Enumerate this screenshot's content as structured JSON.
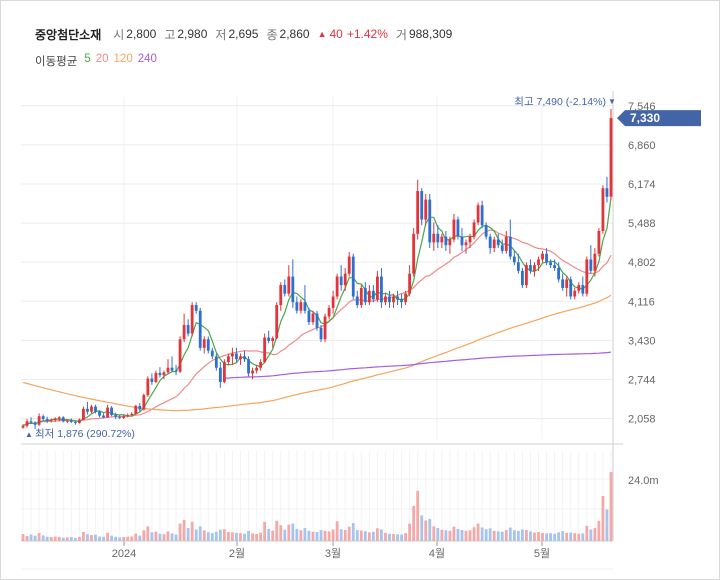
{
  "header": {
    "stock_name": "중앙첨단소재",
    "open_label": "시",
    "open": "2,800",
    "high_label": "고",
    "high": "2,980",
    "low_label": "저",
    "low": "2,695",
    "close_label": "종",
    "close": "2,860",
    "change_arrow": "▲",
    "change": "40",
    "change_pct": "+1.42%",
    "volume_label": "거",
    "volume": "988,309"
  },
  "ma_legend": {
    "label": "이동평균",
    "items": [
      {
        "period": "5",
        "color": "#48a84a"
      },
      {
        "period": "20",
        "color": "#f08a8a"
      },
      {
        "period": "120",
        "color": "#f5a55c"
      },
      {
        "period": "240",
        "color": "#a55ee0"
      }
    ]
  },
  "annotations": {
    "max_text": "최고 7,490 (-2.14%)",
    "max_marker": "▼",
    "min_marker": "▲",
    "min_text": "최저 1,876 (290.72%)",
    "current_price": "7,330"
  },
  "colors": {
    "up": "#e0353a",
    "down": "#2f6fd0",
    "vol_up": "#f4a9a9",
    "vol_down": "#a7c4ef",
    "badge": "#4464a8"
  },
  "chart_data": {
    "type": "candlestick",
    "y_ticks": [
      "7,546",
      "6,860",
      "6,174",
      "5,488",
      "4,802",
      "4,116",
      "3,430",
      "2,744",
      "2,058"
    ],
    "ylim": [
      1700,
      7700
    ],
    "volume_tick": "24.0m",
    "volume_ylim": [
      0,
      32
    ],
    "x_labels": [
      "2024",
      "2월",
      "3월",
      "4월",
      "5월"
    ],
    "grid": true,
    "price": [
      [
        1900,
        1960,
        1880,
        1930
      ],
      [
        1930,
        2050,
        1900,
        2010
      ],
      [
        2010,
        2080,
        1960,
        1990
      ],
      [
        1990,
        2010,
        1876,
        1950
      ],
      [
        1950,
        2150,
        1930,
        2100
      ],
      [
        2100,
        2130,
        2020,
        2050
      ],
      [
        2050,
        2090,
        1980,
        2020
      ],
      [
        2020,
        2060,
        1990,
        2040
      ],
      [
        2040,
        2080,
        2000,
        2050
      ],
      [
        2050,
        2100,
        2010,
        2080
      ],
      [
        2080,
        2100,
        1990,
        2010
      ],
      [
        2010,
        2040,
        1980,
        2020
      ],
      [
        2020,
        2060,
        1980,
        2000
      ],
      [
        2000,
        2020,
        1950,
        1980
      ],
      [
        1980,
        2060,
        1970,
        2040
      ],
      [
        2040,
        2270,
        2030,
        2230
      ],
      [
        2230,
        2350,
        2130,
        2180
      ],
      [
        2180,
        2300,
        2150,
        2270
      ],
      [
        2270,
        2300,
        2150,
        2180
      ],
      [
        2180,
        2200,
        2080,
        2110
      ],
      [
        2110,
        2150,
        2060,
        2080
      ],
      [
        2080,
        2300,
        2070,
        2250
      ],
      [
        2250,
        2280,
        2100,
        2120
      ],
      [
        2120,
        2160,
        2050,
        2090
      ],
      [
        2090,
        2120,
        2050,
        2070
      ],
      [
        2070,
        2120,
        2050,
        2100
      ],
      [
        2100,
        2150,
        2080,
        2120
      ],
      [
        2120,
        2170,
        2090,
        2140
      ],
      [
        2140,
        2300,
        2130,
        2280
      ],
      [
        2280,
        2330,
        2180,
        2220
      ],
      [
        2220,
        2500,
        2200,
        2470
      ],
      [
        2470,
        2800,
        2440,
        2760
      ],
      [
        2760,
        2850,
        2650,
        2700
      ],
      [
        2700,
        2900,
        2680,
        2860
      ],
      [
        2860,
        2960,
        2780,
        2820
      ],
      [
        2820,
        2900,
        2750,
        2870
      ],
      [
        2870,
        3100,
        2850,
        2950
      ],
      [
        2950,
        3150,
        2880,
        2900
      ],
      [
        2900,
        3000,
        2820,
        2880
      ],
      [
        2880,
        3500,
        2860,
        3450
      ],
      [
        3450,
        3900,
        3400,
        3700
      ],
      [
        3700,
        3800,
        3500,
        3550
      ],
      [
        3550,
        4100,
        3500,
        4050
      ],
      [
        4050,
        4100,
        3900,
        3950
      ],
      [
        3950,
        4000,
        3250,
        3300
      ],
      [
        3300,
        3500,
        3200,
        3450
      ],
      [
        3450,
        3500,
        3200,
        3250
      ],
      [
        3250,
        3300,
        3100,
        3150
      ],
      [
        3150,
        3200,
        2900,
        2950
      ],
      [
        2950,
        3050,
        2600,
        2700
      ],
      [
        2700,
        3100,
        2680,
        3050
      ],
      [
        3050,
        3200,
        3000,
        3150
      ],
      [
        3150,
        3300,
        3000,
        3200
      ],
      [
        3200,
        3300,
        3050,
        3100
      ],
      [
        3100,
        3200,
        3000,
        3150
      ],
      [
        3150,
        3250,
        3050,
        3100
      ],
      [
        3100,
        3150,
        2800,
        2850
      ],
      [
        2850,
        2950,
        2750,
        2900
      ],
      [
        2900,
        3000,
        2850,
        2950
      ],
      [
        2950,
        3100,
        2900,
        3050
      ],
      [
        3050,
        3550,
        3030,
        3480
      ],
      [
        3480,
        3600,
        3380,
        3420
      ],
      [
        3420,
        3500,
        3300,
        3470
      ],
      [
        3470,
        4100,
        3450,
        4050
      ],
      [
        4050,
        4450,
        3950,
        4400
      ],
      [
        4400,
        4500,
        4200,
        4250
      ],
      [
        4250,
        4750,
        4200,
        4550
      ],
      [
        4550,
        4850,
        4000,
        4100
      ],
      [
        4100,
        4200,
        3900,
        3950
      ],
      [
        3950,
        4150,
        3900,
        4100
      ],
      [
        4100,
        4400,
        3900,
        3950
      ],
      [
        3950,
        4000,
        3700,
        3750
      ],
      [
        3750,
        3950,
        3700,
        3900
      ],
      [
        3900,
        3950,
        3600,
        3650
      ],
      [
        3650,
        3700,
        3400,
        3450
      ],
      [
        3450,
        3900,
        3400,
        3850
      ],
      [
        3850,
        4050,
        3800,
        4000
      ],
      [
        4000,
        4300,
        3900,
        4200
      ],
      [
        4200,
        4600,
        4150,
        4550
      ],
      [
        4550,
        4750,
        4300,
        4400
      ],
      [
        4400,
        4700,
        4300,
        4600
      ],
      [
        4600,
        4980,
        4550,
        4900
      ],
      [
        4900,
        4950,
        4150,
        4200
      ],
      [
        4200,
        4300,
        4000,
        4050
      ],
      [
        4050,
        4400,
        4000,
        4350
      ],
      [
        4350,
        4450,
        4050,
        4100
      ],
      [
        4100,
        4400,
        4050,
        4300
      ],
      [
        4300,
        4400,
        4100,
        4150
      ],
      [
        4150,
        4650,
        4100,
        4550
      ],
      [
        4550,
        4700,
        4000,
        4100
      ],
      [
        4100,
        4250,
        4050,
        4200
      ],
      [
        4200,
        4300,
        4000,
        4100
      ],
      [
        4100,
        4250,
        4000,
        4200
      ],
      [
        4200,
        4300,
        4050,
        4150
      ],
      [
        4150,
        4250,
        4000,
        4100
      ],
      [
        4100,
        4300,
        4050,
        4250
      ],
      [
        4250,
        4750,
        4200,
        4600
      ],
      [
        4600,
        5400,
        4550,
        5300
      ],
      [
        5300,
        6250,
        5200,
        6050
      ],
      [
        6050,
        6100,
        5450,
        5550
      ],
      [
        5550,
        6000,
        5450,
        5900
      ],
      [
        5900,
        6000,
        5050,
        5150
      ],
      [
        5150,
        5500,
        5000,
        5300
      ],
      [
        5300,
        5450,
        5050,
        5150
      ],
      [
        5150,
        5300,
        5050,
        5250
      ],
      [
        5250,
        5350,
        5000,
        5100
      ],
      [
        5100,
        5250,
        4950,
        5200
      ],
      [
        5200,
        5650,
        5150,
        5550
      ],
      [
        5550,
        5600,
        5200,
        5250
      ],
      [
        5250,
        5400,
        5000,
        5100
      ],
      [
        5100,
        5200,
        4950,
        5150
      ],
      [
        5150,
        5300,
        5050,
        5250
      ],
      [
        5250,
        5550,
        5200,
        5500
      ],
      [
        5500,
        5850,
        5450,
        5800
      ],
      [
        5800,
        5880,
        5400,
        5450
      ],
      [
        5450,
        5500,
        5200,
        5250
      ],
      [
        5250,
        5300,
        4950,
        5050
      ],
      [
        5050,
        5250,
        4980,
        5200
      ],
      [
        5200,
        5300,
        5050,
        5100
      ],
      [
        5100,
        5200,
        4950,
        5000
      ],
      [
        5000,
        5350,
        4950,
        5250
      ],
      [
        5250,
        5550,
        4850,
        4900
      ],
      [
        4900,
        5000,
        4750,
        4800
      ],
      [
        4800,
        4950,
        4600,
        4650
      ],
      [
        4650,
        4700,
        4350,
        4400
      ],
      [
        4400,
        4800,
        4350,
        4750
      ],
      [
        4750,
        4850,
        4600,
        4650
      ],
      [
        4650,
        4800,
        4550,
        4750
      ],
      [
        4750,
        4900,
        4650,
        4850
      ],
      [
        4850,
        5000,
        4800,
        4950
      ],
      [
        4950,
        5050,
        4750,
        4800
      ],
      [
        4800,
        4850,
        4700,
        4750
      ],
      [
        4750,
        4850,
        4650,
        4700
      ],
      [
        4700,
        4800,
        4450,
        4500
      ],
      [
        4500,
        4600,
        4300,
        4350
      ],
      [
        4350,
        4550,
        4200,
        4500
      ],
      [
        4500,
        4550,
        4150,
        4200
      ],
      [
        4200,
        4350,
        4150,
        4300
      ],
      [
        4300,
        4450,
        4250,
        4400
      ],
      [
        4400,
        4550,
        4200,
        4250
      ],
      [
        4250,
        4900,
        4200,
        4850
      ],
      [
        4850,
        5100,
        4600,
        4650
      ],
      [
        4650,
        5050,
        4550,
        4950
      ],
      [
        4950,
        5400,
        4900,
        5350
      ],
      [
        5350,
        6150,
        5300,
        6100
      ],
      [
        6100,
        6300,
        5850,
        5950
      ],
      [
        5950,
        7490,
        5900,
        7330
      ]
    ],
    "volume": [
      2.5,
      1.8,
      2.3,
      1.9,
      2.8,
      2.0,
      1.5,
      1.4,
      1.6,
      1.5,
      1.2,
      1.3,
      1.4,
      1.1,
      1.5,
      3.2,
      2.4,
      2.1,
      2.2,
      1.6,
      1.5,
      2.9,
      1.9,
      1.5,
      1.3,
      1.4,
      1.5,
      1.6,
      2.6,
      1.9,
      3.8,
      5.2,
      3.1,
      3.3,
      2.6,
      2.4,
      3.4,
      2.7,
      2.3,
      6.2,
      7.5,
      4.6,
      6.8,
      4.1,
      5.2,
      3.8,
      3.1,
      2.8,
      3.3,
      4.0,
      4.2,
      3.2,
      3.1,
      2.9,
      2.8,
      2.6,
      3.6,
      2.7,
      2.5,
      3.0,
      6.8,
      4.3,
      3.7,
      7.2,
      5.6,
      4.0,
      5.8,
      6.2,
      4.3,
      3.8,
      4.6,
      3.6,
      3.3,
      3.2,
      3.9,
      3.6,
      3.4,
      4.1,
      7.0,
      4.2,
      3.9,
      5.1,
      6.4,
      3.9,
      3.7,
      3.5,
      3.1,
      3.3,
      4.5,
      4.1,
      2.9,
      2.6,
      2.5,
      2.4,
      2.3,
      2.8,
      6.2,
      12.5,
      17.8,
      9.1,
      7.3,
      7.9,
      5.2,
      4.6,
      4.0,
      3.8,
      3.6,
      5.1,
      4.3,
      3.9,
      3.6,
      3.8,
      4.9,
      6.2,
      4.8,
      4.2,
      4.5,
      3.6,
      3.4,
      3.3,
      3.9,
      4.8,
      3.8,
      3.6,
      4.1,
      3.9,
      3.4,
      3.0,
      3.2,
      2.9,
      2.7,
      2.8,
      2.6,
      3.1,
      3.5,
      2.9,
      3.0,
      2.8,
      2.6,
      2.7,
      5.4,
      4.1,
      4.6,
      7.2,
      16.0,
      11.2,
      24.5
    ]
  }
}
